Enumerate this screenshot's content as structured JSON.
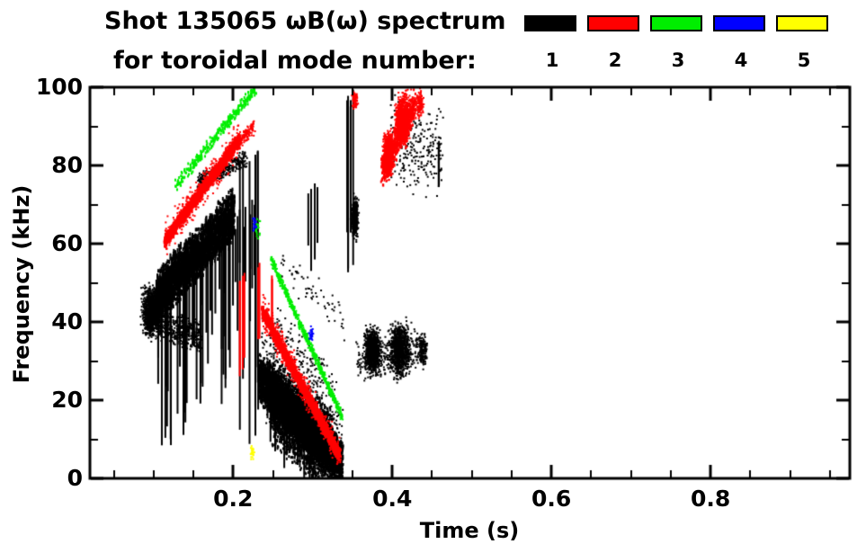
{
  "title": {
    "line1": "Shot 135065 ωB(ω) spectrum",
    "line2": "for toroidal mode number:"
  },
  "legend": {
    "position": "top-right",
    "items": [
      {
        "label": "1",
        "color": "#000000"
      },
      {
        "label": "2",
        "color": "#ff0000"
      },
      {
        "label": "3",
        "color": "#00ee00"
      },
      {
        "label": "4",
        "color": "#0000ff"
      },
      {
        "label": "5",
        "color": "#ffff00"
      }
    ]
  },
  "chart_data": {
    "type": "scatter",
    "title": "Shot 135065 ωB(ω) spectrum for toroidal mode number: 1-5",
    "xlabel": "Time (s)",
    "ylabel": "Frequency (kHz)",
    "xlim": [
      0.02,
      0.975
    ],
    "ylim": [
      0,
      100
    ],
    "xticks": [
      0.2,
      0.4,
      0.6,
      0.8
    ],
    "xtick_labels": [
      "0.2",
      "0.4",
      "0.6",
      "0.8"
    ],
    "yticks": [
      0,
      20,
      40,
      60,
      80,
      100
    ],
    "ytick_labels": [
      "0",
      "20",
      "40",
      "60",
      "80",
      "100"
    ],
    "minor_x_step": 0.05,
    "minor_y_step": 10,
    "grid": false,
    "background": "#ffffff",
    "series": [
      {
        "mode": 1,
        "name": "n=1",
        "color": "#000000"
      },
      {
        "mode": 2,
        "name": "n=2",
        "color": "#ff0000"
      },
      {
        "mode": 3,
        "name": "n=3",
        "color": "#00ee00"
      },
      {
        "mode": 4,
        "name": "n=4",
        "color": "#0000ff"
      },
      {
        "mode": 5,
        "name": "n=5",
        "color": "#ffff00"
      }
    ],
    "features": [
      {
        "mode": 1,
        "kind": "blob",
        "t": 0.096,
        "f": 43,
        "st": 0.01,
        "sf": 5.5,
        "n": 1100,
        "seed": 11
      },
      {
        "mode": 1,
        "kind": "band",
        "t0": 0.104,
        "f0": 47,
        "t1": 0.2,
        "f1": 68,
        "th": 15,
        "n": 3000,
        "seed": 12,
        "dh": 4
      },
      {
        "mode": 1,
        "kind": "band",
        "t0": 0.105,
        "f0": 40,
        "t1": 0.16,
        "f1": 36,
        "th": 9,
        "n": 420,
        "seed": 13
      },
      {
        "mode": 1,
        "kind": "band",
        "t0": 0.155,
        "f0": 76,
        "t1": 0.215,
        "f1": 82,
        "th": 5,
        "n": 330,
        "seed": 14
      },
      {
        "mode": 1,
        "kind": "vlines",
        "t0": 0.102,
        "t1": 0.228,
        "ftop0": 48,
        "ftop1": 70,
        "fjit": 6,
        "lmin": 12,
        "lmax": 42,
        "n": 55,
        "w": 2,
        "seed": 15
      },
      {
        "mode": 1,
        "kind": "vlines",
        "t0": 0.198,
        "t1": 0.232,
        "ftop0": 80,
        "ftop1": 84,
        "fjit": 4,
        "lmin": 55,
        "lmax": 78,
        "n": 7,
        "w": 2,
        "seed": 16
      },
      {
        "mode": 1,
        "kind": "band",
        "t0": 0.232,
        "f0": 26,
        "t1": 0.336,
        "f1": 4,
        "th": 13,
        "n": 5200,
        "seed": 17,
        "dh": 3
      },
      {
        "mode": 1,
        "kind": "band",
        "t0": 0.248,
        "f0": 20,
        "t1": 0.325,
        "f1": 7,
        "th": 24,
        "n": 2600,
        "seed": 18,
        "dh": 3
      },
      {
        "mode": 1,
        "kind": "band",
        "t0": 0.236,
        "f0": 28,
        "t1": 0.336,
        "f1": 6,
        "th": 30,
        "n": 700,
        "seed": 19
      },
      {
        "mode": 1,
        "kind": "vlines",
        "t0": 0.23,
        "t1": 0.3,
        "ftop0": 32,
        "ftop1": 14,
        "fjit": 4,
        "lmin": 8,
        "lmax": 20,
        "n": 35,
        "w": 2,
        "seed": 20
      },
      {
        "mode": 1,
        "kind": "band",
        "t0": 0.25,
        "f0": 40,
        "t1": 0.33,
        "f1": 22,
        "th": 14,
        "n": 120,
        "seed": 21
      },
      {
        "mode": 1,
        "kind": "vlines",
        "t0": 0.293,
        "t1": 0.312,
        "ftop0": 74,
        "ftop1": 76,
        "fjit": 3,
        "lmin": 12,
        "lmax": 22,
        "n": 4,
        "w": 2,
        "seed": 22
      },
      {
        "mode": 1,
        "kind": "vlines",
        "t0": 0.342,
        "t1": 0.357,
        "ftop0": 96,
        "ftop1": 100,
        "fjit": 3,
        "lmin": 30,
        "lmax": 48,
        "n": 5,
        "w": 2,
        "seed": 23
      },
      {
        "mode": 1,
        "kind": "blob",
        "t": 0.352,
        "f": 67,
        "st": 0.004,
        "sf": 4.5,
        "n": 350,
        "seed": 24
      },
      {
        "mode": 1,
        "kind": "blob",
        "t": 0.374,
        "f": 33,
        "st": 0.009,
        "sf": 5,
        "n": 800,
        "seed": 25
      },
      {
        "mode": 1,
        "kind": "blob",
        "t": 0.408,
        "f": 33,
        "st": 0.011,
        "sf": 6,
        "n": 900,
        "seed": 26
      },
      {
        "mode": 1,
        "kind": "band",
        "t0": 0.355,
        "f0": 30,
        "t1": 0.432,
        "f1": 34,
        "th": 12,
        "n": 300,
        "seed": 27
      },
      {
        "mode": 1,
        "kind": "band",
        "t0": 0.398,
        "f0": 86,
        "t1": 0.462,
        "f1": 84,
        "th": 26,
        "n": 240,
        "seed": 28
      },
      {
        "mode": 1,
        "kind": "vlines",
        "t0": 0.455,
        "t1": 0.465,
        "ftop0": 86,
        "ftop1": 88,
        "fjit": 2,
        "lmin": 10,
        "lmax": 14,
        "n": 2,
        "w": 2,
        "seed": 29
      },
      {
        "mode": 1,
        "kind": "blob",
        "t": 0.437,
        "f": 33,
        "st": 0.005,
        "sf": 4,
        "n": 160,
        "seed": 30
      },
      {
        "mode": 1,
        "kind": "band",
        "t0": 0.26,
        "f0": 55,
        "t1": 0.34,
        "f1": 40,
        "th": 12,
        "n": 60,
        "seed": 31
      },
      {
        "mode": 3,
        "kind": "band",
        "t0": 0.126,
        "f0": 75,
        "t1": 0.227,
        "f1": 100,
        "th": 3.5,
        "n": 300,
        "seed": 61,
        "dh": 3
      },
      {
        "mode": 3,
        "kind": "band",
        "t0": 0.247,
        "f0": 56,
        "t1": 0.336,
        "f1": 16,
        "th": 2.5,
        "n": 650,
        "seed": 62
      },
      {
        "mode": 3,
        "kind": "blob",
        "t": 0.23,
        "f": 64,
        "st": 0.003,
        "sf": 2,
        "n": 20,
        "seed": 63
      },
      {
        "mode": 2,
        "kind": "band",
        "t0": 0.113,
        "f0": 61,
        "t1": 0.207,
        "f1": 87,
        "th": 4,
        "n": 1800,
        "seed": 41,
        "dh": 3
      },
      {
        "mode": 2,
        "kind": "band",
        "t0": 0.113,
        "f0": 61,
        "t1": 0.207,
        "f1": 87,
        "th": 11,
        "n": 320,
        "seed": 42
      },
      {
        "mode": 2,
        "kind": "band",
        "t0": 0.205,
        "f0": 86,
        "t1": 0.225,
        "f1": 90,
        "th": 5,
        "n": 140,
        "seed": 52
      },
      {
        "mode": 2,
        "kind": "vlines",
        "t0": 0.206,
        "t1": 0.232,
        "ftop0": 52,
        "ftop1": 56,
        "fjit": 4,
        "lmin": 12,
        "lmax": 26,
        "n": 6,
        "w": 2,
        "seed": 43
      },
      {
        "mode": 2,
        "kind": "vlines",
        "t0": 0.242,
        "t1": 0.249,
        "ftop0": 50,
        "ftop1": 52,
        "fjit": 2,
        "lmin": 10,
        "lmax": 14,
        "n": 2,
        "w": 2,
        "seed": 44
      },
      {
        "mode": 2,
        "kind": "band",
        "t0": 0.236,
        "f0": 43,
        "t1": 0.333,
        "f1": 6,
        "th": 4,
        "n": 2400,
        "seed": 45,
        "dh": 3
      },
      {
        "mode": 2,
        "kind": "band",
        "t0": 0.236,
        "f0": 43,
        "t1": 0.333,
        "f1": 6,
        "th": 10,
        "n": 420,
        "seed": 46
      },
      {
        "mode": 2,
        "kind": "blob",
        "t": 0.394,
        "f": 83,
        "st": 0.006,
        "sf": 5,
        "n": 800,
        "seed": 47
      },
      {
        "mode": 2,
        "kind": "blob",
        "t": 0.412,
        "f": 92,
        "st": 0.008,
        "sf": 5.5,
        "n": 1000,
        "seed": 48
      },
      {
        "mode": 2,
        "kind": "band",
        "t0": 0.386,
        "f0": 79,
        "t1": 0.428,
        "f1": 96,
        "th": 9,
        "n": 700,
        "seed": 49,
        "dh": 3
      },
      {
        "mode": 2,
        "kind": "blob",
        "t": 0.352,
        "f": 97,
        "st": 0.003,
        "sf": 2,
        "n": 80,
        "seed": 50
      },
      {
        "mode": 2,
        "kind": "blob",
        "t": 0.434,
        "f": 96,
        "st": 0.004,
        "sf": 3,
        "n": 120,
        "seed": 51
      },
      {
        "mode": 4,
        "kind": "blob",
        "t": 0.297,
        "f": 37,
        "st": 0.0025,
        "sf": 1.8,
        "n": 30,
        "seed": 71
      },
      {
        "mode": 4,
        "kind": "blob",
        "t": 0.226,
        "f": 65,
        "st": 0.002,
        "sf": 1.5,
        "n": 20,
        "seed": 72
      },
      {
        "mode": 5,
        "kind": "blob",
        "t": 0.223,
        "f": 7,
        "st": 0.002,
        "sf": 1.8,
        "n": 25,
        "seed": 81
      }
    ]
  }
}
